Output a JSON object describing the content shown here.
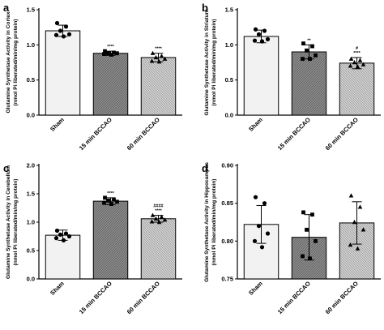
{
  "colors": {
    "sham_fill": "#f2f2f2",
    "bcc15_fill": "#8c8c8c",
    "bcc60_fill": "#c0c0c0",
    "axis": "#000000"
  },
  "chart_data": [
    {
      "type": "bar",
      "panel": "a",
      "categories": [
        "Sham",
        "15 min BCCAO",
        "60 min BCCAO"
      ],
      "values": [
        1.2,
        0.88,
        0.82
      ],
      "errors": [
        0.08,
        0.03,
        0.06
      ],
      "points": [
        [
          1.31,
          1.26,
          1.2,
          1.15,
          1.14,
          1.12
        ],
        [
          0.91,
          0.89,
          0.88,
          0.88,
          0.87,
          0.86
        ],
        [
          0.88,
          0.84,
          0.82,
          0.8,
          0.77,
          0.76
        ]
      ],
      "point_markers": [
        "circle",
        "square",
        "triangle"
      ],
      "annotations": [
        "",
        "****",
        "****"
      ],
      "ylabel": [
        "Glutamine Synthetase Activity in Cortex",
        "(nmol Pi liberated/min/mg protein)"
      ],
      "ylim": [
        0,
        1.5
      ],
      "yticks": [
        "0.0",
        "0.5",
        "1.0",
        "1.5"
      ]
    },
    {
      "type": "bar",
      "panel": "b",
      "categories": [
        "Sham",
        "15 min BCCAO",
        "60 min BCCAO"
      ],
      "values": [
        1.12,
        0.9,
        0.74
      ],
      "errors": [
        0.09,
        0.1,
        0.08
      ],
      "points": [
        [
          1.22,
          1.2,
          1.15,
          1.08,
          1.06,
          1.05
        ],
        [
          1.02,
          0.98,
          0.92,
          0.85,
          0.8,
          0.8
        ],
        [
          0.8,
          0.78,
          0.75,
          0.72,
          0.7,
          0.69
        ]
      ],
      "point_markers": [
        "circle",
        "square",
        "triangle"
      ],
      "annotations": [
        "",
        "**",
        "#\n****"
      ],
      "ylabel": [
        "Glutamine Synthetase Activity in Striatum",
        "(nmol Pi liberated/min/mg protein)"
      ],
      "ylim": [
        0,
        1.5
      ],
      "yticks": [
        "0.0",
        "0.5",
        "1.0",
        "1.5"
      ]
    },
    {
      "type": "bar",
      "panel": "c",
      "categories": [
        "Sham",
        "15 min BCCAO",
        "60 min BCCAO"
      ],
      "values": [
        0.77,
        1.37,
        1.06
      ],
      "errors": [
        0.09,
        0.06,
        0.06
      ],
      "points": [
        [
          0.85,
          0.8,
          0.78,
          0.75,
          0.72,
          0.68
        ],
        [
          1.43,
          1.4,
          1.38,
          1.36,
          1.34,
          1.32
        ],
        [
          1.12,
          1.09,
          1.06,
          1.04,
          1.01,
          1.0
        ]
      ],
      "point_markers": [
        "circle",
        "square",
        "triangle"
      ],
      "annotations": [
        "",
        "****",
        "####\n****"
      ],
      "ylabel": [
        "Glutamine Synthetase Activity in Cerebellum",
        "(nmol Pi liberated/min/mg protein)"
      ],
      "ylim": [
        0,
        2.0
      ],
      "yticks": [
        "0.0",
        "0.5",
        "1.0",
        "1.5",
        "2.0"
      ]
    },
    {
      "type": "bar",
      "panel": "d",
      "categories": [
        "Sham",
        "15 min BCCAO",
        "60 min BCCAO"
      ],
      "values": [
        0.822,
        0.805,
        0.824
      ],
      "errors": [
        0.025,
        0.03,
        0.028
      ],
      "points": [
        [
          0.858,
          0.85,
          0.82,
          0.81,
          0.8,
          0.792
        ],
        [
          0.838,
          0.835,
          0.815,
          0.8,
          0.78,
          0.777
        ],
        [
          0.86,
          0.845,
          0.825,
          0.815,
          0.795,
          0.79
        ]
      ],
      "point_markers": [
        "circle",
        "square",
        "triangle"
      ],
      "annotations": [
        "",
        "",
        ""
      ],
      "ylabel": [
        "Glutamine Synthetase Activity in Hippocampus",
        "(nmol Pi liberated/min/mg protein)"
      ],
      "ylim": [
        0.75,
        0.9
      ],
      "yticks": [
        "0.75",
        "0.80",
        "0.85",
        "0.90"
      ]
    }
  ]
}
